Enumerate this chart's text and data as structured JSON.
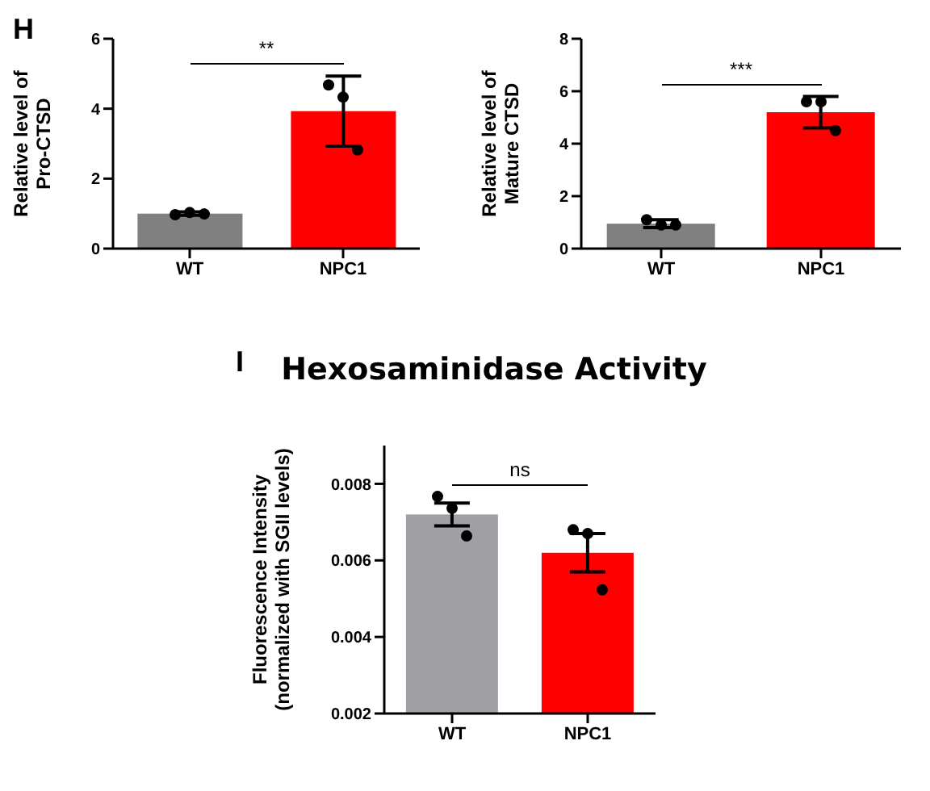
{
  "chart_data": [
    {
      "type": "bar",
      "annotations": [
        "H",
        "**"
      ],
      "ylabel": "Relative level of\nPro-CTSD",
      "categories": [
        "WT",
        "NPC1"
      ],
      "ylim": [
        0,
        6
      ],
      "yticks": [
        0,
        2,
        4,
        6
      ],
      "series": [
        {
          "type": "bar",
          "values": [
            1.0,
            3.93
          ],
          "errors": [
            0.05,
            1.0
          ],
          "colors": [
            "#808080",
            "#ff0000"
          ]
        },
        {
          "type": "scatter",
          "color": "#000000",
          "x": [
            "WT",
            "WT",
            "WT",
            "NPC1",
            "NPC1",
            "NPC1"
          ],
          "values": [
            0.97,
            1.03,
            0.99,
            4.68,
            4.33,
            2.82
          ]
        }
      ]
    },
    {
      "type": "bar",
      "annotations": [
        "***"
      ],
      "ylabel": "Relative level of\nMature  CTSD",
      "categories": [
        "WT",
        "NPC1"
      ],
      "ylim": [
        0,
        8
      ],
      "yticks": [
        0,
        2,
        4,
        6,
        8
      ],
      "series": [
        {
          "type": "bar",
          "values": [
            0.95,
            5.2
          ],
          "errors": [
            0.15,
            0.6
          ],
          "colors": [
            "#808080",
            "#ff0000"
          ]
        },
        {
          "type": "scatter",
          "color": "#000000",
          "x": [
            "WT",
            "WT",
            "WT",
            "NPC1",
            "NPC1",
            "NPC1"
          ],
          "values": [
            1.1,
            0.9,
            0.9,
            5.6,
            5.6,
            4.5
          ]
        }
      ]
    },
    {
      "type": "bar",
      "title": "Hexosaminidase Activity",
      "annotations": [
        "I",
        "ns"
      ],
      "ylabel": "Fluorescence Intensity\n(normalized with SGII levels)",
      "categories": [
        "WT",
        "NPC1"
      ],
      "ylim": [
        0.002,
        0.009
      ],
      "yticks": [
        0.002,
        0.004,
        0.006,
        0.008
      ],
      "series": [
        {
          "type": "bar",
          "values": [
            0.0072,
            0.0062
          ],
          "errors": [
            0.0003,
            0.0005
          ],
          "colors": [
            "#a0a0a4",
            "#ff0000"
          ]
        },
        {
          "type": "scatter",
          "color": "#000000",
          "x": [
            "WT",
            "WT",
            "WT",
            "NPC1",
            "NPC1",
            "NPC1"
          ],
          "values": [
            0.00767,
            0.00736,
            0.00664,
            0.0068,
            0.0067,
            0.00523
          ]
        }
      ]
    }
  ]
}
